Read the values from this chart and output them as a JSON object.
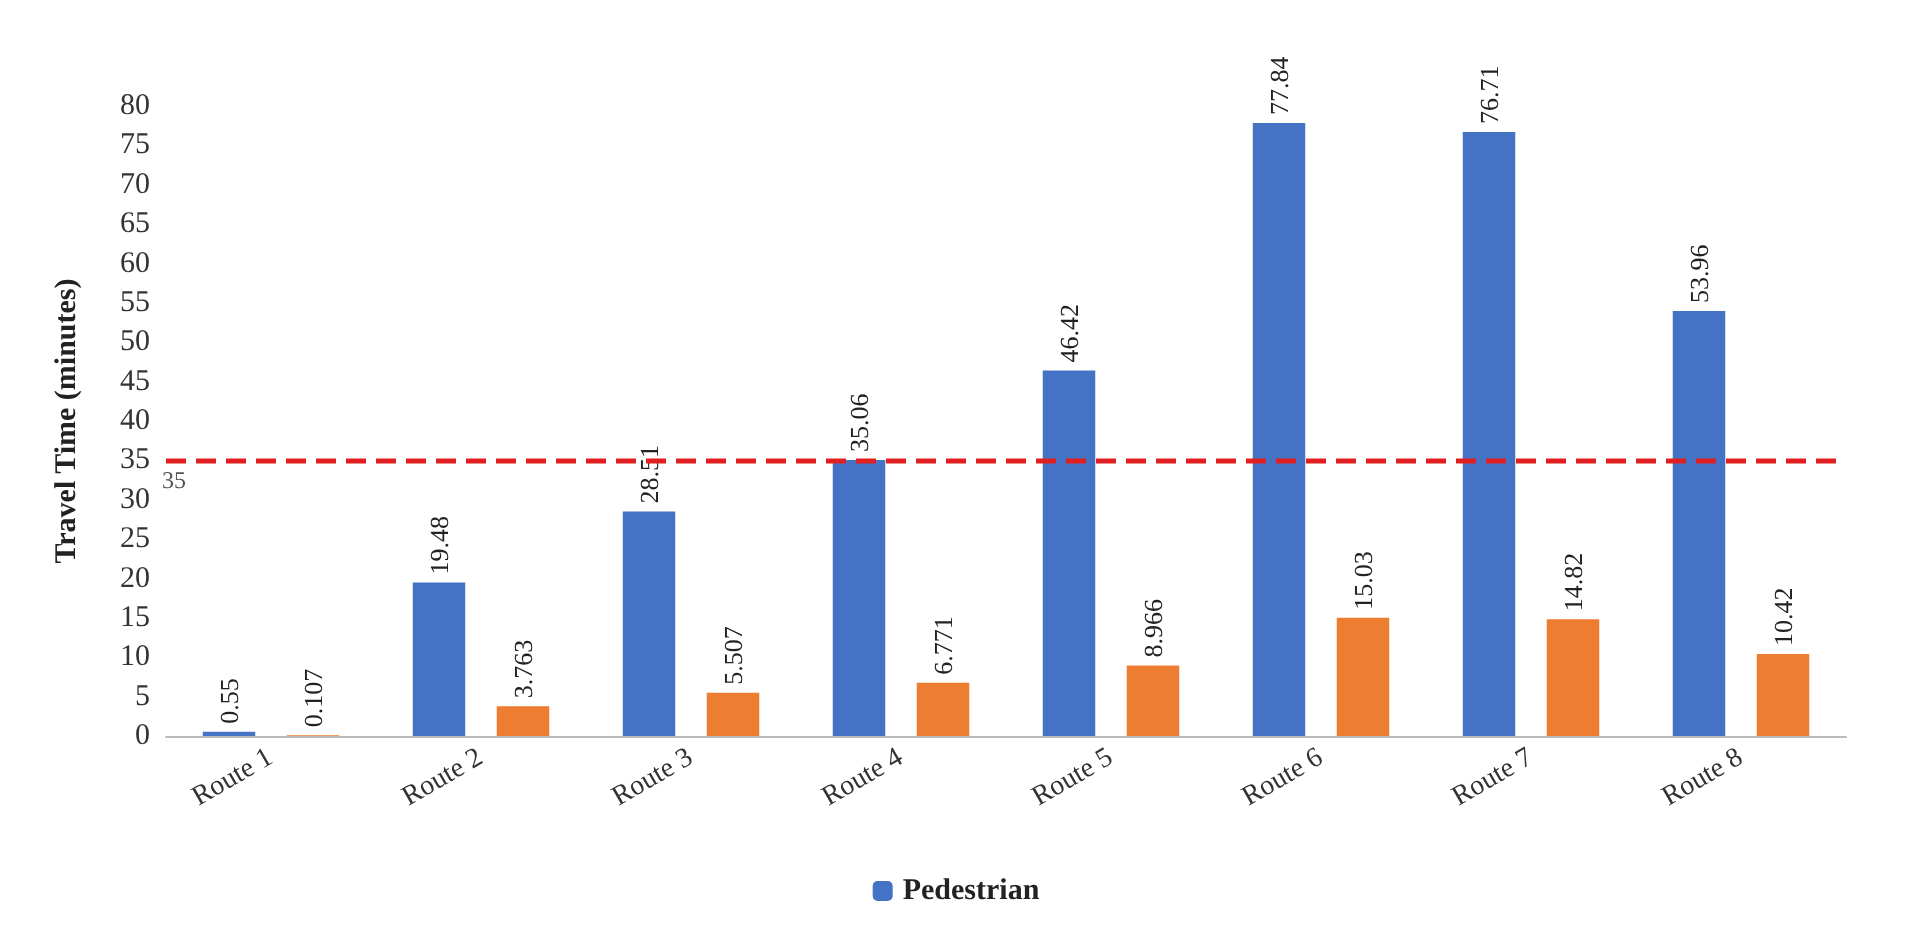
{
  "chart_data": {
    "type": "bar",
    "ylabel": "Travel Time (minutes)",
    "categories": [
      "Route 1",
      "Route 2",
      "Route 3",
      "Route 4",
      "Route 5",
      "Route 6",
      "Route 7",
      "Route 8"
    ],
    "series": [
      {
        "name": "Pedestrian",
        "color": "#4472c4",
        "values": [
          0.55,
          19.48,
          28.51,
          35.06,
          46.42,
          77.84,
          76.71,
          53.96
        ]
      },
      {
        "color": "#ed7d31",
        "values": [
          0.107,
          3.763,
          5.507,
          6.771,
          8.966,
          15.03,
          14.82,
          10.42
        ]
      }
    ],
    "ylim": [
      0,
      80
    ],
    "yticks": [
      0,
      5,
      10,
      15,
      20,
      25,
      30,
      35,
      40,
      45,
      50,
      55,
      60,
      65,
      70,
      75,
      80
    ],
    "ref_lines": [
      {
        "axis": "y",
        "value": 35,
        "label": "35",
        "color": "#e02020",
        "line_style": "dashed"
      }
    ],
    "data_labels": true,
    "legend": "bottom",
    "grid": false
  }
}
